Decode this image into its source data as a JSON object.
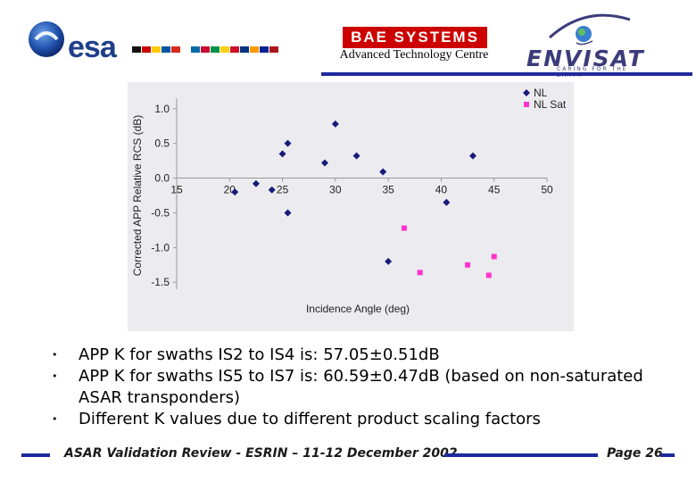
{
  "header": {
    "esa_logo_text": "esa",
    "bae_logo_text": "BAE SYSTEMS",
    "subtitle": "Advanced Technology Centre",
    "envisat_logo_text": "ENVISAT",
    "envisat_tagline": "CARING FOR THE EARTH",
    "flag_colors": [
      "#111111",
      "#cc0000",
      "#ffcc00",
      "#0055a4",
      "#d52b1e",
      "#ffffff",
      "#006aa7",
      "#c60c30",
      "#009246",
      "#fcd116",
      "#ce1126",
      "#003580",
      "#ff9900",
      "#002395",
      "#aa151b",
      "#ffffff"
    ]
  },
  "chart_data": {
    "type": "scatter",
    "xlabel": "Incidence Angle (deg)",
    "ylabel": "Corrected APP Relative RCS (dB)",
    "xlim": [
      15,
      50
    ],
    "ylim": [
      -1.6,
      1.1
    ],
    "x_ticks": [
      "15",
      "20",
      "25",
      "30",
      "35",
      "40",
      "45",
      "50"
    ],
    "y_ticks": [
      "1.0",
      "0.5",
      "0.0",
      "-0.5",
      "-1.0",
      "-1.5"
    ],
    "grid": false,
    "legend_position": "top-right",
    "series": [
      {
        "name": "NL",
        "color": "#1a1a7a",
        "marker": "diamond",
        "points": [
          [
            20.5,
            -0.2
          ],
          [
            22.5,
            -0.08
          ],
          [
            24,
            -0.17
          ],
          [
            25,
            0.35
          ],
          [
            25.5,
            0.5
          ],
          [
            25.5,
            -0.5
          ],
          [
            29,
            0.22
          ],
          [
            30,
            0.78
          ],
          [
            32,
            0.32
          ],
          [
            34.5,
            0.09
          ],
          [
            35,
            -1.2
          ],
          [
            40.5,
            -0.35
          ],
          [
            43,
            0.32
          ]
        ]
      },
      {
        "name": "NL Sat",
        "color": "#ff33cc",
        "marker": "square",
        "points": [
          [
            36.5,
            -0.72
          ],
          [
            38,
            -1.36
          ],
          [
            42.5,
            -1.25
          ],
          [
            44.5,
            -1.4
          ],
          [
            45,
            -1.13
          ]
        ]
      }
    ]
  },
  "bullets": [
    "APP K for swaths IS2 to IS4 is: 57.05±0.51dB",
    "APP K for swaths IS5 to IS7 is: 60.59±0.47dB (based on non-saturated ASAR transponders)",
    "Different K values due to different product scaling factors"
  ],
  "footer": {
    "text": "ASAR Validation Review - ESRIN – 11-12 December 2002",
    "page_label": "Page 26"
  },
  "colors": {
    "accent_blue": "#1e2a9c",
    "esa_blue": "#1e3f8a",
    "bae_red": "#cc0000",
    "chart_background": "#ececf0"
  }
}
